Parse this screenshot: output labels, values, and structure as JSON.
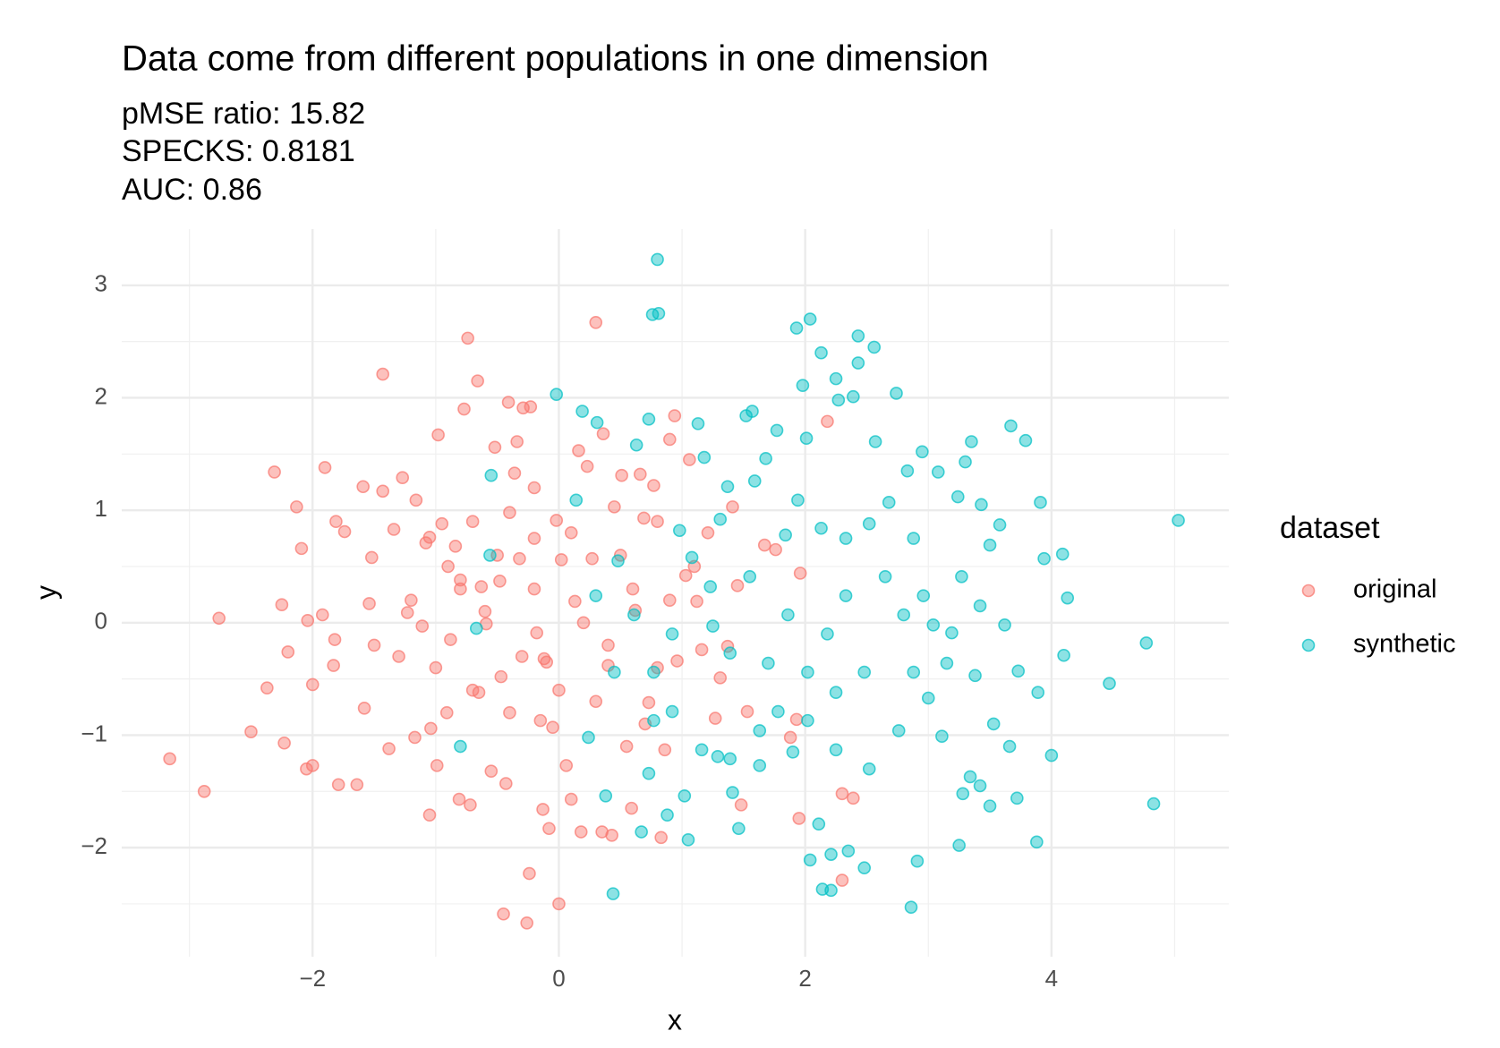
{
  "chart_data": {
    "type": "scatter",
    "title": "Data come from different populations in one dimension",
    "subtitle": [
      "pMSE ratio: 15.82",
      "SPECKS: 0.8181",
      "AUC: 0.86"
    ],
    "x_label": "x",
    "y_label": "y",
    "legend_title": "dataset",
    "legend": "right",
    "grid": true,
    "xlim": [
      -3.55,
      5.44
    ],
    "ylim": [
      -2.97,
      3.5
    ],
    "xticks": [
      {
        "value": -2,
        "label": "−2"
      },
      0,
      2,
      4
    ],
    "yticks": [
      {
        "value": -2,
        "label": "−2"
      },
      {
        "value": -1,
        "label": "−1"
      },
      0,
      1,
      2,
      3
    ],
    "xminor": [
      -3,
      -1,
      1,
      3,
      5
    ],
    "yminor": [
      -2.5,
      -1.5,
      -0.5,
      0.5,
      1.5,
      2.5
    ],
    "opacity": 0.45,
    "series": [
      {
        "name": "original",
        "color": "#F8766D",
        "x": [
          -3.16,
          -2.88,
          -2.76,
          -2.5,
          -2.37,
          -2.31,
          -2.25,
          -2.23,
          -2.2,
          -2.13,
          -2.09,
          -2.05,
          -2.04,
          -2.0,
          -2.0,
          -1.92,
          -1.9,
          -1.81,
          -1.82,
          -1.83,
          -1.79,
          -1.74,
          -1.64,
          -1.59,
          -1.58,
          -1.54,
          -1.52,
          -1.43,
          -1.43,
          -1.38,
          -1.34,
          -1.27,
          -1.23,
          -1.17,
          -1.16,
          -1.11,
          -1.08,
          -1.05,
          -1.05,
          -1.04,
          -0.98,
          -0.99,
          -0.95,
          -0.91,
          -0.88,
          -0.84,
          -0.81,
          -0.8,
          -0.77,
          -0.74,
          -0.72,
          -0.7,
          -0.66,
          -0.65,
          -0.63,
          -0.59,
          -0.55,
          -0.52,
          -0.48,
          -0.47,
          -0.43,
          -0.45,
          -0.41,
          -0.4,
          -0.36,
          -0.34,
          -0.32,
          -0.29,
          -0.26,
          -0.24,
          -0.23,
          -0.2,
          -0.18,
          -0.15,
          -0.12,
          -0.13,
          -0.08,
          -0.05,
          -0.02,
          0,
          0.02,
          0.06,
          0.1,
          0.13,
          0.16,
          0.18,
          0.23,
          0.27,
          0.3,
          0.35,
          0.36,
          0.4,
          0.43,
          0.45,
          0.51,
          0.55,
          0.59,
          0.62,
          0.66,
          0.69,
          0.73,
          0.77,
          0.8,
          0.83,
          0.86,
          0.9,
          0.94,
          0.96,
          1.03,
          1.06,
          1.12,
          1.16,
          1.21,
          1.27,
          1.31,
          1.37,
          1.41,
          1.45,
          1.48,
          1.53,
          1.67,
          1.76,
          1.88,
          1.93,
          1.95,
          1.96,
          2.18,
          2.3,
          2.3,
          2.39,
          -1.2,
          -0.9,
          -0.6,
          -0.3,
          -0.1,
          0.2,
          0.4,
          0.6,
          -0.5,
          -0.2,
          0.1,
          -0.7,
          -1.0,
          0.3,
          0.8,
          -0.4,
          0.5,
          -0.8,
          0.0,
          -0.2,
          -1.3,
          0.9,
          1.1,
          -1.5,
          0.7
        ],
        "values": [
          -1.21,
          -1.5,
          0.04,
          -0.97,
          -0.58,
          1.34,
          0.16,
          -1.07,
          -0.26,
          1.03,
          0.66,
          -1.3,
          0.02,
          -1.27,
          -0.55,
          0.07,
          1.38,
          0.9,
          -0.15,
          -0.38,
          -1.44,
          0.81,
          -1.44,
          1.21,
          -0.76,
          0.17,
          0.58,
          2.21,
          1.17,
          -1.12,
          0.83,
          1.29,
          0.09,
          -1.02,
          1.09,
          -0.03,
          0.71,
          0.76,
          -1.71,
          -0.94,
          1.67,
          -1.27,
          0.88,
          -0.8,
          -0.15,
          0.68,
          -1.57,
          0.38,
          1.9,
          2.53,
          -1.62,
          0.9,
          2.15,
          -0.62,
          0.32,
          -0.01,
          -1.32,
          1.56,
          0.37,
          -0.48,
          -1.43,
          -2.59,
          1.96,
          0.98,
          1.33,
          1.61,
          0.57,
          1.91,
          -2.67,
          -2.23,
          1.92,
          0.75,
          -0.09,
          -0.87,
          -0.32,
          -1.66,
          -1.83,
          -0.93,
          0.91,
          -2.5,
          0.56,
          -1.27,
          -1.57,
          0.19,
          1.53,
          -1.86,
          1.39,
          0.57,
          2.67,
          -1.86,
          1.68,
          -0.38,
          -1.89,
          1.03,
          1.31,
          -1.1,
          -1.65,
          0.11,
          1.32,
          0.93,
          -0.71,
          1.22,
          0.9,
          -1.91,
          -1.13,
          1.63,
          1.84,
          -0.34,
          0.42,
          1.45,
          0.19,
          -0.24,
          0.8,
          -0.85,
          -0.49,
          -0.21,
          1.03,
          0.33,
          -1.62,
          -0.79,
          0.69,
          0.65,
          -1.02,
          -0.86,
          -1.74,
          0.44,
          1.79,
          -2.29,
          -1.52,
          -1.56,
          0.2,
          0.5,
          0.1,
          -0.3,
          -0.35,
          0.0,
          -0.2,
          0.3,
          0.6,
          0.3,
          0.8,
          -0.6,
          -0.4,
          -0.7,
          -0.4,
          -0.8,
          0.6,
          0.3,
          -0.6,
          1.2,
          -0.3,
          0.2,
          0.5,
          -0.2,
          -0.9
        ]
      },
      {
        "name": "synthetic",
        "color": "#00BFC4",
        "x": [
          0.8,
          0.76,
          0.81,
          -0.02,
          -0.55,
          -0.56,
          -0.67,
          -0.8,
          0.14,
          0.19,
          0.31,
          0.24,
          0.38,
          0.44,
          0.48,
          0.63,
          0.67,
          0.73,
          0.73,
          0.88,
          0.98,
          1.02,
          1.05,
          1.13,
          1.18,
          1.25,
          1.29,
          1.37,
          1.41,
          1.46,
          1.52,
          1.57,
          1.63,
          1.68,
          1.77,
          1.84,
          1.9,
          1.93,
          1.98,
          2.01,
          2.04,
          2.04,
          2.11,
          2.13,
          2.14,
          2.21,
          2.21,
          2.25,
          2.27,
          2.35,
          2.43,
          2.43,
          2.39,
          2.48,
          2.56,
          2.57,
          2.68,
          2.74,
          2.83,
          2.86,
          2.91,
          2.95,
          2.96,
          3.08,
          3.24,
          3.25,
          3.3,
          3.35,
          3.43,
          3.5,
          3.58,
          3.67,
          3.79,
          3.91,
          3.94,
          4.09,
          4.13,
          4.1,
          4.0,
          3.89,
          3.88,
          3.72,
          3.66,
          3.5,
          3.42,
          3.34,
          3.28,
          3.11,
          3.0,
          4.47,
          4.77,
          4.83,
          5.03,
          3.73,
          3.53,
          3.38,
          3.19,
          3.04,
          2.8,
          2.65,
          2.48,
          2.33,
          2.18,
          2.02,
          1.86,
          1.7,
          1.55,
          1.39,
          1.23,
          1.08,
          0.92,
          0.77,
          0.61,
          0.45,
          0.3,
          3.27,
          3.42,
          2.88,
          2.52,
          2.33,
          2.13,
          1.94,
          1.59,
          1.31,
          3.62,
          3.15,
          2.76,
          2.52,
          2.25,
          2.02,
          1.78,
          1.63,
          1.39,
          1.16,
          0.92,
          0.77,
          2.25,
          2.88
        ],
        "values": [
          3.23,
          2.74,
          2.75,
          2.03,
          1.31,
          0.6,
          -0.05,
          -1.1,
          1.09,
          1.88,
          1.78,
          -1.02,
          -1.54,
          -2.41,
          0.55,
          1.58,
          -1.86,
          -1.34,
          1.81,
          -1.71,
          0.82,
          -1.54,
          -1.93,
          1.77,
          1.47,
          -0.03,
          -1.19,
          1.21,
          -1.51,
          -1.83,
          1.84,
          1.88,
          -1.27,
          1.46,
          1.71,
          0.78,
          -1.15,
          2.62,
          2.11,
          1.64,
          2.7,
          -2.11,
          -1.79,
          2.4,
          -2.37,
          -2.38,
          -2.06,
          2.17,
          1.98,
          -2.03,
          2.55,
          2.31,
          2.01,
          -2.18,
          2.45,
          1.61,
          1.07,
          2.04,
          1.35,
          -2.53,
          -2.12,
          1.52,
          0.24,
          1.34,
          1.12,
          -1.98,
          1.43,
          1.61,
          1.05,
          0.69,
          0.87,
          1.75,
          1.62,
          1.07,
          0.57,
          0.61,
          0.22,
          -0.29,
          -1.18,
          -0.62,
          -1.95,
          -1.56,
          -1.1,
          -1.63,
          -1.45,
          -1.37,
          -1.52,
          -1.01,
          -0.67,
          -0.54,
          -0.18,
          -1.61,
          0.91,
          -0.43,
          -0.9,
          -0.47,
          -0.09,
          -0.02,
          0.07,
          0.41,
          -0.44,
          0.24,
          -0.1,
          -0.44,
          0.07,
          -0.36,
          0.41,
          -0.27,
          0.32,
          0.58,
          -0.1,
          -0.44,
          0.07,
          -0.44,
          0.24,
          0.41,
          0.15,
          0.75,
          0.88,
          0.75,
          0.84,
          1.09,
          1.26,
          0.92,
          -0.02,
          -0.36,
          -0.96,
          -1.3,
          -1.13,
          -0.87,
          -0.79,
          -0.96,
          -1.21,
          -1.13,
          -0.79,
          -0.87,
          -0.62,
          -0.44
        ]
      }
    ]
  }
}
